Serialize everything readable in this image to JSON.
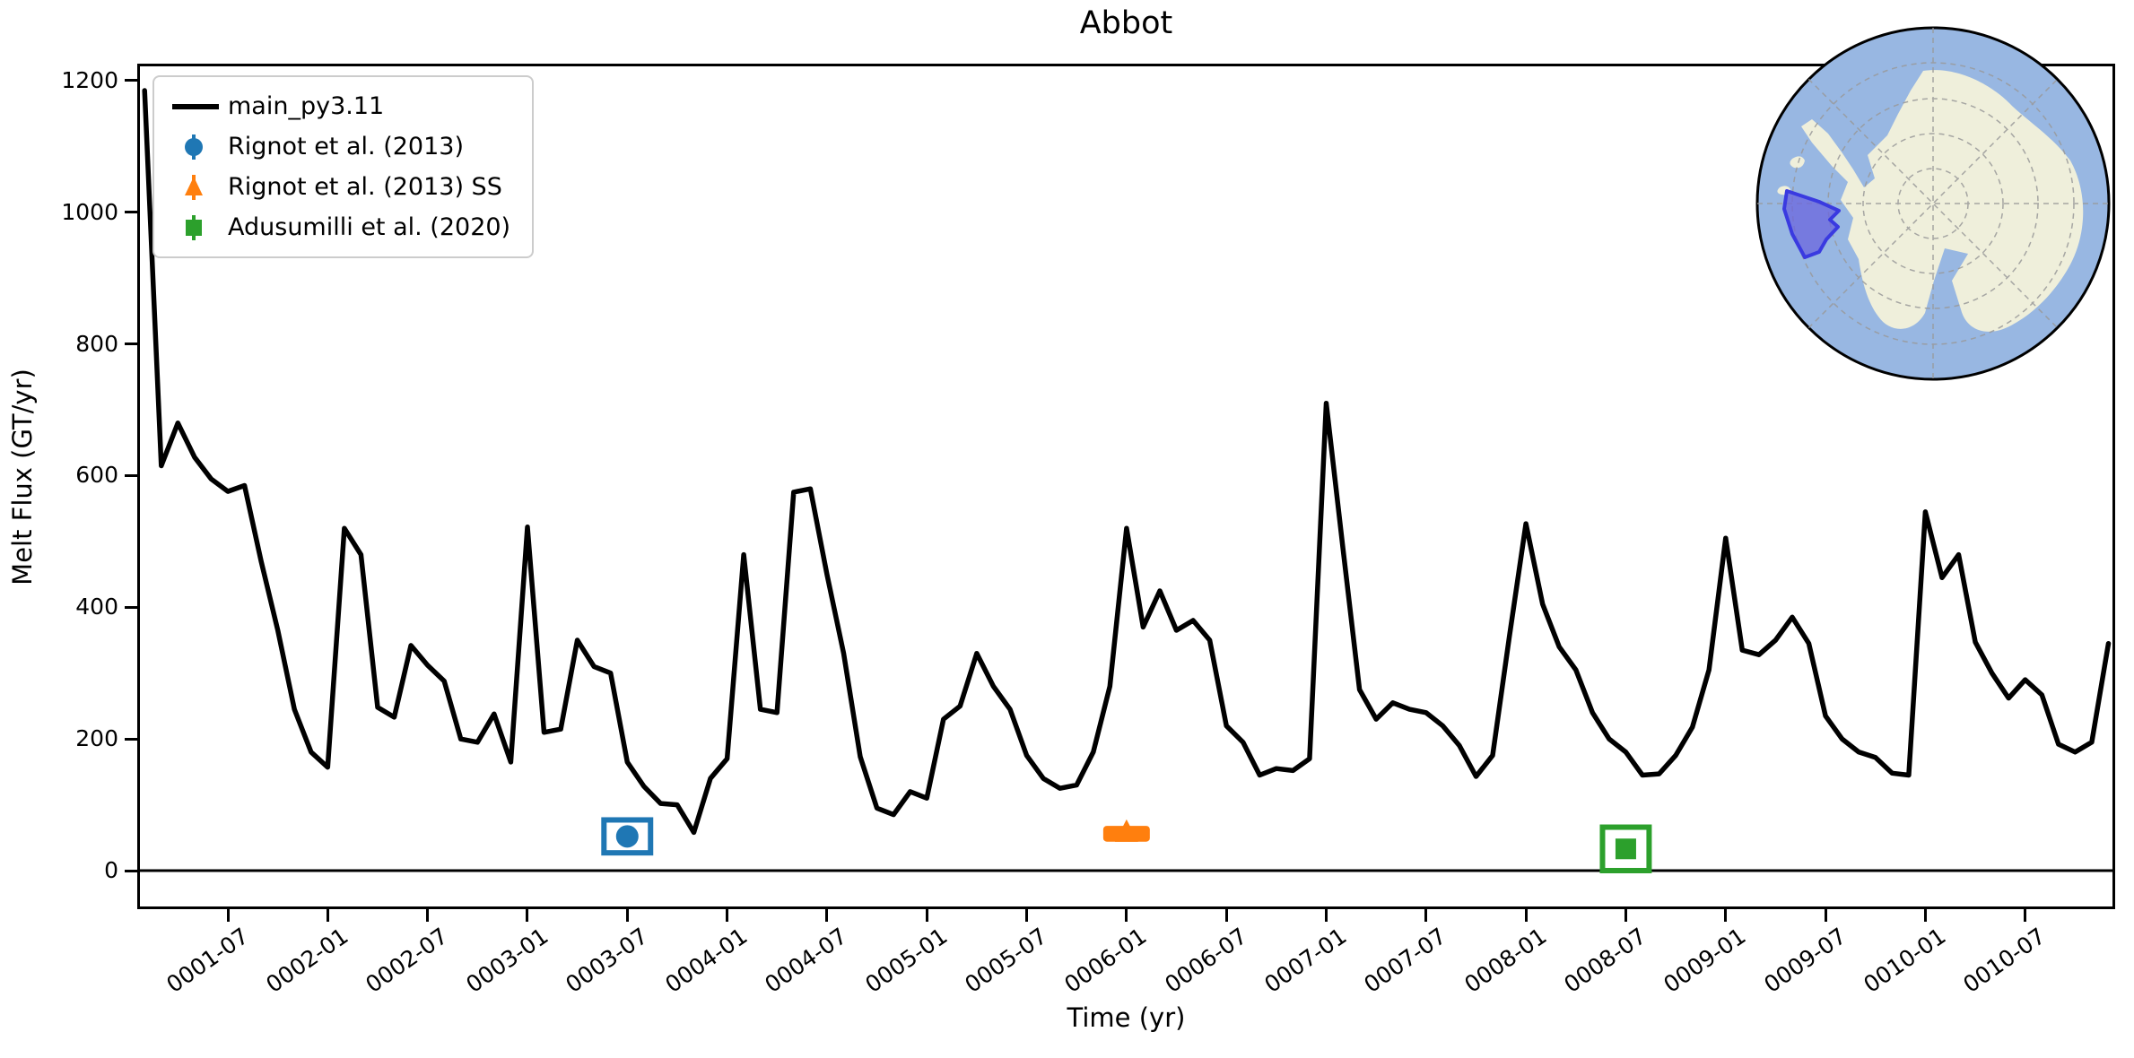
{
  "title": "Abbot",
  "axes": {
    "xlabel": "Time (yr)",
    "ylabel": "Melt Flux (GT/yr)"
  },
  "legend": {
    "items": [
      {
        "label": "main_py3.11",
        "marker": "line",
        "color": "#000000"
      },
      {
        "label": "Rignot et al. (2013)",
        "marker": "circle",
        "color": "#1f77b4"
      },
      {
        "label": "Rignot et al. (2013) SS",
        "marker": "triangle",
        "color": "#ff7f0e"
      },
      {
        "label": "Adusumilli et al. (2020)",
        "marker": "square",
        "color": "#2ca02c"
      }
    ]
  },
  "colors": {
    "line": "#000000",
    "rignot": "#1f77b4",
    "rignot_ss": "#ff7f0e",
    "adusumilli": "#2ca02c",
    "inset_ocean": "#98b7e2",
    "inset_land": "#efefdb",
    "inset_grid": "#999999",
    "inset_highlight_fill": "#6b66dd",
    "inset_highlight_stroke": "#3a3ae0"
  },
  "chart_data": {
    "type": "line",
    "title": "Abbot",
    "xlabel": "Time (yr)",
    "ylabel": "Melt Flux (GT/yr)",
    "ylim": [
      -59,
      1226
    ],
    "grid": false,
    "legend_position": "upper left",
    "yticks": [
      0,
      200,
      400,
      600,
      800,
      1000,
      1200
    ],
    "xtick_labels": [
      "0001-07",
      "0002-01",
      "0002-07",
      "0003-01",
      "0003-07",
      "0004-01",
      "0004-07",
      "0005-01",
      "0005-07",
      "0006-01",
      "0006-07",
      "0007-01",
      "0007-07",
      "0008-01",
      "0008-07",
      "0009-01",
      "0009-07",
      "0010-01",
      "0010-07"
    ],
    "series": [
      {
        "name": "main_py3.11",
        "color": "#000000",
        "points": [
          [
            "0001-02",
            1185
          ],
          [
            "0001-03",
            615
          ],
          [
            "0001-04",
            680
          ],
          [
            "0001-05",
            628
          ],
          [
            "0001-06",
            595
          ],
          [
            "0001-07",
            576
          ],
          [
            "0001-08",
            585
          ],
          [
            "0001-09",
            470
          ],
          [
            "0001-10",
            365
          ],
          [
            "0001-11",
            245
          ],
          [
            "0001-12",
            180
          ],
          [
            "0002-01",
            157
          ],
          [
            "0002-02",
            520
          ],
          [
            "0002-03",
            480
          ],
          [
            "0002-04",
            248
          ],
          [
            "0002-05",
            233
          ],
          [
            "0002-06",
            342
          ],
          [
            "0002-07",
            312
          ],
          [
            "0002-08",
            288
          ],
          [
            "0002-09",
            200
          ],
          [
            "0002-10",
            195
          ],
          [
            "0002-11",
            238
          ],
          [
            "0002-12",
            165
          ],
          [
            "0003-01",
            522
          ],
          [
            "0003-02",
            210
          ],
          [
            "0003-03",
            215
          ],
          [
            "0003-04",
            350
          ],
          [
            "0003-05",
            310
          ],
          [
            "0003-06",
            300
          ],
          [
            "0003-07",
            165
          ],
          [
            "0003-08",
            128
          ],
          [
            "0003-09",
            102
          ],
          [
            "0003-10",
            100
          ],
          [
            "0003-11",
            58
          ],
          [
            "0003-12",
            140
          ],
          [
            "0004-01",
            170
          ],
          [
            "0004-02",
            480
          ],
          [
            "0004-03",
            245
          ],
          [
            "0004-04",
            240
          ],
          [
            "0004-05",
            575
          ],
          [
            "0004-06",
            580
          ],
          [
            "0004-07",
            450
          ],
          [
            "0004-08",
            330
          ],
          [
            "0004-09",
            173
          ],
          [
            "0004-10",
            95
          ],
          [
            "0004-11",
            85
          ],
          [
            "0004-12",
            120
          ],
          [
            "0005-01",
            110
          ],
          [
            "0005-02",
            230
          ],
          [
            "0005-03",
            250
          ],
          [
            "0005-04",
            330
          ],
          [
            "0005-05",
            280
          ],
          [
            "0005-06",
            245
          ],
          [
            "0005-07",
            175
          ],
          [
            "0005-08",
            140
          ],
          [
            "0005-09",
            125
          ],
          [
            "0005-10",
            130
          ],
          [
            "0005-11",
            180
          ],
          [
            "0005-12",
            280
          ],
          [
            "0006-01",
            520
          ],
          [
            "0006-02",
            370
          ],
          [
            "0006-03",
            425
          ],
          [
            "0006-04",
            365
          ],
          [
            "0006-05",
            380
          ],
          [
            "0006-06",
            350
          ],
          [
            "0006-07",
            220
          ],
          [
            "0006-08",
            195
          ],
          [
            "0006-09",
            145
          ],
          [
            "0006-10",
            155
          ],
          [
            "0006-11",
            152
          ],
          [
            "0006-12",
            170
          ],
          [
            "0007-01",
            710
          ],
          [
            "0007-02",
            490
          ],
          [
            "0007-03",
            275
          ],
          [
            "0007-04",
            230
          ],
          [
            "0007-05",
            255
          ],
          [
            "0007-06",
            245
          ],
          [
            "0007-07",
            240
          ],
          [
            "0007-08",
            220
          ],
          [
            "0007-09",
            190
          ],
          [
            "0007-10",
            143
          ],
          [
            "0007-11",
            175
          ],
          [
            "0007-12",
            355
          ],
          [
            "0008-01",
            527
          ],
          [
            "0008-02",
            405
          ],
          [
            "0008-03",
            340
          ],
          [
            "0008-04",
            305
          ],
          [
            "0008-05",
            240
          ],
          [
            "0008-06",
            200
          ],
          [
            "0008-07",
            180
          ],
          [
            "0008-08",
            145
          ],
          [
            "0008-09",
            147
          ],
          [
            "0008-10",
            175
          ],
          [
            "0008-11",
            218
          ],
          [
            "0008-12",
            305
          ],
          [
            "0009-01",
            505
          ],
          [
            "0009-02",
            335
          ],
          [
            "0009-03",
            328
          ],
          [
            "0009-04",
            350
          ],
          [
            "0009-05",
            385
          ],
          [
            "0009-06",
            345
          ],
          [
            "0009-07",
            235
          ],
          [
            "0009-08",
            200
          ],
          [
            "0009-09",
            180
          ],
          [
            "0009-10",
            172
          ],
          [
            "0009-11",
            148
          ],
          [
            "0009-12",
            145
          ],
          [
            "0010-01",
            545
          ],
          [
            "0010-02",
            445
          ],
          [
            "0010-03",
            480
          ],
          [
            "0010-04",
            347
          ],
          [
            "0010-05",
            300
          ],
          [
            "0010-06",
            262
          ],
          [
            "0010-07",
            290
          ],
          [
            "0010-08",
            267
          ],
          [
            "0010-09",
            192
          ],
          [
            "0010-10",
            180
          ],
          [
            "0010-11",
            195
          ],
          [
            "0010-12",
            345
          ]
        ]
      }
    ],
    "observations": [
      {
        "label": "Rignot et al. (2013)",
        "color": "#1f77b4",
        "marker": "circle",
        "style": "box",
        "date": "0003-07",
        "value": 52,
        "yerr": 25,
        "xerr_months": 1.4
      },
      {
        "label": "Rignot et al. (2013) SS",
        "color": "#ff7f0e",
        "marker": "triangle",
        "style": "bar",
        "date": "0006-01",
        "value": 56,
        "yerr": 12,
        "xerr_months": 1.4
      },
      {
        "label": "Adusumilli et al. (2020)",
        "color": "#2ca02c",
        "marker": "square",
        "style": "box",
        "date": "0008-07",
        "value": 33,
        "yerr": 33,
        "xerr_months": 1.4
      }
    ],
    "zero_line": 0
  },
  "inset": {
    "name": "Antarctica locator",
    "highlight_region": "Abbot"
  }
}
